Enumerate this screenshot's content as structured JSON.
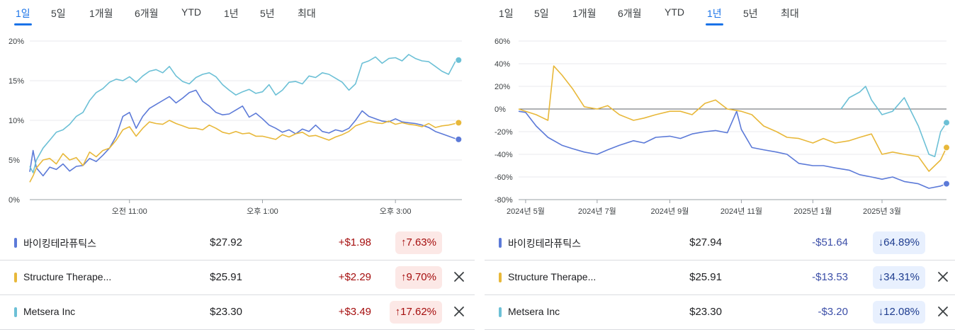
{
  "left": {
    "tabs": [
      {
        "label": "1일",
        "active": true
      },
      {
        "label": "5일",
        "active": false
      },
      {
        "label": "1개월",
        "active": false
      },
      {
        "label": "6개월",
        "active": false
      },
      {
        "label": "YTD",
        "active": false
      },
      {
        "label": "1년",
        "active": false
      },
      {
        "label": "5년",
        "active": false
      },
      {
        "label": "최대",
        "active": false
      }
    ],
    "rows": [
      {
        "name": "바이킹테라퓨틱스",
        "price": "$27.92",
        "change": "+$1.98",
        "pct": "7.63%",
        "dir": "up",
        "color": "#5c7ad8",
        "closable": false
      },
      {
        "name": "Structure Therape...",
        "price": "$25.91",
        "change": "+$2.29",
        "pct": "9.70%",
        "dir": "up",
        "color": "#e8b83a",
        "closable": true
      },
      {
        "name": "Metsera Inc",
        "price": "$23.30",
        "change": "+$3.49",
        "pct": "17.62%",
        "dir": "up",
        "color": "#6cc0d6",
        "closable": true
      }
    ]
  },
  "right": {
    "tabs": [
      {
        "label": "1일",
        "active": false
      },
      {
        "label": "5일",
        "active": false
      },
      {
        "label": "1개월",
        "active": false
      },
      {
        "label": "6개월",
        "active": false
      },
      {
        "label": "YTD",
        "active": false
      },
      {
        "label": "1년",
        "active": true
      },
      {
        "label": "5년",
        "active": false
      },
      {
        "label": "최대",
        "active": false
      }
    ],
    "rows": [
      {
        "name": "바이킹테라퓨틱스",
        "price": "$27.94",
        "change": "-$51.64",
        "pct": "64.89%",
        "dir": "down",
        "color": "#5c7ad8",
        "closable": false
      },
      {
        "name": "Structure Therape...",
        "price": "$25.91",
        "change": "-$13.53",
        "pct": "34.31%",
        "dir": "down",
        "color": "#e8b83a",
        "closable": true
      },
      {
        "name": "Metsera Inc",
        "price": "$23.30",
        "change": "-$3.20",
        "pct": "12.08%",
        "dir": "down",
        "color": "#6cc0d6",
        "closable": true
      }
    ]
  },
  "chart_data": [
    {
      "type": "line",
      "title": "",
      "yticks": [
        "0%",
        "5%",
        "10%",
        "15%",
        "20%"
      ],
      "ylim": [
        0,
        20
      ],
      "xlim": [
        9.5,
        16.0
      ],
      "xticks": [
        {
          "label": "오전 11:00",
          "x": 11.0
        },
        {
          "label": "오후 1:00",
          "x": 13.0
        },
        {
          "label": "오후 3:00",
          "x": 15.0
        }
      ],
      "grid": true,
      "series": [
        {
          "color": "#5c7ad8",
          "x": [
            9.5,
            9.55,
            9.6,
            9.7,
            9.8,
            9.9,
            10.0,
            10.1,
            10.2,
            10.3,
            10.4,
            10.5,
            10.6,
            10.7,
            10.8,
            10.9,
            11.0,
            11.1,
            11.2,
            11.3,
            11.4,
            11.5,
            11.6,
            11.7,
            11.8,
            11.9,
            12.0,
            12.1,
            12.2,
            12.3,
            12.4,
            12.5,
            12.6,
            12.7,
            12.8,
            12.9,
            13.0,
            13.1,
            13.2,
            13.3,
            13.4,
            13.5,
            13.6,
            13.7,
            13.8,
            13.9,
            14.0,
            14.1,
            14.2,
            14.3,
            14.4,
            14.5,
            14.6,
            14.7,
            14.8,
            14.9,
            15.0,
            15.1,
            15.2,
            15.3,
            15.4,
            15.5,
            15.6,
            15.7,
            15.8,
            15.9,
            15.95
          ],
          "y": [
            3.5,
            6.2,
            4.0,
            3.0,
            4.1,
            3.8,
            4.5,
            3.6,
            4.2,
            4.3,
            5.2,
            4.8,
            5.6,
            6.5,
            8.0,
            10.5,
            11.0,
            9.0,
            10.5,
            11.5,
            12.0,
            12.5,
            13.0,
            12.2,
            12.8,
            13.5,
            13.8,
            12.4,
            11.8,
            11.0,
            10.7,
            10.8,
            11.3,
            11.8,
            10.4,
            10.9,
            10.2,
            9.4,
            9.0,
            8.5,
            8.8,
            8.3,
            8.9,
            8.6,
            9.4,
            8.6,
            8.4,
            8.8,
            8.6,
            9.0,
            10.0,
            11.2,
            10.5,
            10.2,
            9.9,
            9.8,
            10.2,
            9.8,
            9.7,
            9.6,
            9.4,
            9.1,
            8.6,
            8.3,
            8.0,
            7.7,
            7.6
          ]
        },
        {
          "color": "#e8b83a",
          "x": [
            9.5,
            9.55,
            9.6,
            9.7,
            9.8,
            9.9,
            10.0,
            10.1,
            10.2,
            10.3,
            10.4,
            10.5,
            10.6,
            10.7,
            10.8,
            10.9,
            11.0,
            11.1,
            11.2,
            11.3,
            11.4,
            11.5,
            11.6,
            11.7,
            11.8,
            11.9,
            12.0,
            12.1,
            12.2,
            12.3,
            12.4,
            12.5,
            12.6,
            12.7,
            12.8,
            12.9,
            13.0,
            13.1,
            13.2,
            13.3,
            13.4,
            13.5,
            13.6,
            13.7,
            13.8,
            13.9,
            14.0,
            14.1,
            14.2,
            14.3,
            14.4,
            14.5,
            14.6,
            14.7,
            14.8,
            14.9,
            15.0,
            15.1,
            15.2,
            15.3,
            15.4,
            15.5,
            15.6,
            15.7,
            15.8,
            15.9,
            15.95
          ],
          "y": [
            2.2,
            3.0,
            4.0,
            5.0,
            5.2,
            4.5,
            5.8,
            5.0,
            5.3,
            4.3,
            6.0,
            5.4,
            6.2,
            6.5,
            7.5,
            8.8,
            9.2,
            8.0,
            9.0,
            9.8,
            9.6,
            9.5,
            10.0,
            9.6,
            9.3,
            9.0,
            9.0,
            8.8,
            9.4,
            9.0,
            8.5,
            8.3,
            8.6,
            8.3,
            8.4,
            8.0,
            8.0,
            7.8,
            7.6,
            8.2,
            7.9,
            8.3,
            8.5,
            8.0,
            8.1,
            7.8,
            7.5,
            7.9,
            8.2,
            8.6,
            9.3,
            9.6,
            9.9,
            9.7,
            9.6,
            9.9,
            9.5,
            9.7,
            9.5,
            9.4,
            9.2,
            9.6,
            9.1,
            9.3,
            9.4,
            9.6,
            9.7
          ]
        },
        {
          "color": "#6cc0d6",
          "x": [
            9.5,
            9.55,
            9.6,
            9.7,
            9.8,
            9.9,
            10.0,
            10.1,
            10.2,
            10.3,
            10.4,
            10.5,
            10.6,
            10.7,
            10.8,
            10.9,
            11.0,
            11.1,
            11.2,
            11.3,
            11.4,
            11.5,
            11.6,
            11.7,
            11.8,
            11.9,
            12.0,
            12.1,
            12.2,
            12.3,
            12.4,
            12.5,
            12.6,
            12.7,
            12.8,
            12.9,
            13.0,
            13.1,
            13.2,
            13.3,
            13.4,
            13.5,
            13.6,
            13.7,
            13.8,
            13.9,
            14.0,
            14.1,
            14.2,
            14.3,
            14.4,
            14.5,
            14.6,
            14.7,
            14.8,
            14.9,
            15.0,
            15.1,
            15.2,
            15.3,
            15.4,
            15.5,
            15.6,
            15.7,
            15.8,
            15.9,
            15.95
          ],
          "y": [
            4.2,
            3.4,
            5.0,
            6.5,
            7.5,
            8.5,
            8.8,
            9.5,
            10.5,
            11.0,
            12.5,
            13.5,
            14.0,
            14.8,
            15.2,
            15.0,
            15.5,
            14.8,
            15.6,
            16.2,
            16.4,
            16.0,
            16.8,
            15.6,
            14.9,
            14.6,
            15.4,
            15.8,
            16.0,
            15.5,
            14.5,
            13.8,
            13.2,
            13.6,
            13.9,
            13.4,
            13.6,
            14.5,
            13.2,
            13.8,
            14.8,
            14.9,
            14.6,
            15.6,
            15.4,
            16.0,
            15.8,
            15.3,
            14.8,
            13.8,
            14.6,
            17.2,
            17.5,
            18.0,
            17.2,
            17.8,
            17.9,
            17.5,
            18.3,
            17.8,
            17.5,
            17.4,
            16.8,
            16.2,
            15.8,
            17.4,
            17.6
          ]
        }
      ]
    },
    {
      "type": "line",
      "title": "",
      "yticks": [
        "-80%",
        "-60%",
        "-40%",
        "-20%",
        "0%",
        "20%",
        "40%",
        "60%"
      ],
      "ylim": [
        -80,
        60
      ],
      "xlim": [
        "2024-04-25",
        "2025-04-25"
      ],
      "xticks": [
        {
          "label": "2024년 5월",
          "x": "2024-05-01"
        },
        {
          "label": "2024년 7월",
          "x": "2024-07-01"
        },
        {
          "label": "2024년 9월",
          "x": "2024-09-01"
        },
        {
          "label": "2024년 11월",
          "x": "2024-11-01"
        },
        {
          "label": "2025년 1월",
          "x": "2025-01-01"
        },
        {
          "label": "2025년 3월",
          "x": "2025-03-01"
        }
      ],
      "zero_line": true,
      "series": [
        {
          "color": "#5c7ad8",
          "x": [
            "2024-04-25",
            "2024-05-01",
            "2024-05-10",
            "2024-05-20",
            "2024-06-01",
            "2024-06-10",
            "2024-06-20",
            "2024-07-01",
            "2024-07-10",
            "2024-07-20",
            "2024-08-01",
            "2024-08-10",
            "2024-08-20",
            "2024-09-01",
            "2024-09-10",
            "2024-09-20",
            "2024-10-01",
            "2024-10-10",
            "2024-10-20",
            "2024-10-28",
            "2024-11-01",
            "2024-11-10",
            "2024-11-20",
            "2024-12-01",
            "2024-12-10",
            "2024-12-20",
            "2025-01-01",
            "2025-01-10",
            "2025-01-20",
            "2025-02-01",
            "2025-02-10",
            "2025-02-20",
            "2025-03-01",
            "2025-03-10",
            "2025-03-20",
            "2025-04-01",
            "2025-04-10",
            "2025-04-20",
            "2025-04-25"
          ],
          "y": [
            -2,
            -3,
            -15,
            -25,
            -32,
            -35,
            -38,
            -40,
            -36,
            -32,
            -28,
            -30,
            -25,
            -24,
            -26,
            -22,
            -20,
            -19,
            -21,
            -2,
            -18,
            -34,
            -36,
            -38,
            -40,
            -48,
            -50,
            -50,
            -52,
            -54,
            -58,
            -60,
            -62,
            -60,
            -64,
            -66,
            -70,
            -68,
            -66
          ]
        },
        {
          "color": "#e8b83a",
          "x": [
            "2024-04-25",
            "2024-05-01",
            "2024-05-10",
            "2024-05-20",
            "2024-05-25",
            "2024-06-01",
            "2024-06-10",
            "2024-06-20",
            "2024-07-01",
            "2024-07-10",
            "2024-07-20",
            "2024-08-01",
            "2024-08-10",
            "2024-08-20",
            "2024-09-01",
            "2024-09-10",
            "2024-09-20",
            "2024-10-01",
            "2024-10-10",
            "2024-10-20",
            "2024-11-01",
            "2024-11-10",
            "2024-11-20",
            "2024-12-01",
            "2024-12-10",
            "2024-12-20",
            "2025-01-01",
            "2025-01-10",
            "2025-01-20",
            "2025-02-01",
            "2025-02-10",
            "2025-02-20",
            "2025-03-01",
            "2025-03-10",
            "2025-03-20",
            "2025-04-01",
            "2025-04-10",
            "2025-04-20",
            "2025-04-25"
          ],
          "y": [
            0,
            -2,
            -5,
            -10,
            38,
            30,
            18,
            2,
            0,
            3,
            -5,
            -10,
            -8,
            -5,
            -2,
            -2,
            -5,
            5,
            8,
            0,
            -2,
            -5,
            -15,
            -20,
            -25,
            -26,
            -30,
            -26,
            -30,
            -28,
            -25,
            -22,
            -40,
            -38,
            -40,
            -42,
            -55,
            -45,
            -34
          ]
        },
        {
          "color": "#6cc0d6",
          "x": [
            "2025-01-25",
            "2025-02-01",
            "2025-02-10",
            "2025-02-15",
            "2025-02-20",
            "2025-03-01",
            "2025-03-10",
            "2025-03-20",
            "2025-04-01",
            "2025-04-10",
            "2025-04-15",
            "2025-04-20",
            "2025-04-25"
          ],
          "y": [
            0,
            10,
            15,
            20,
            8,
            -5,
            -2,
            10,
            -15,
            -40,
            -42,
            -20,
            -12
          ]
        }
      ]
    }
  ]
}
